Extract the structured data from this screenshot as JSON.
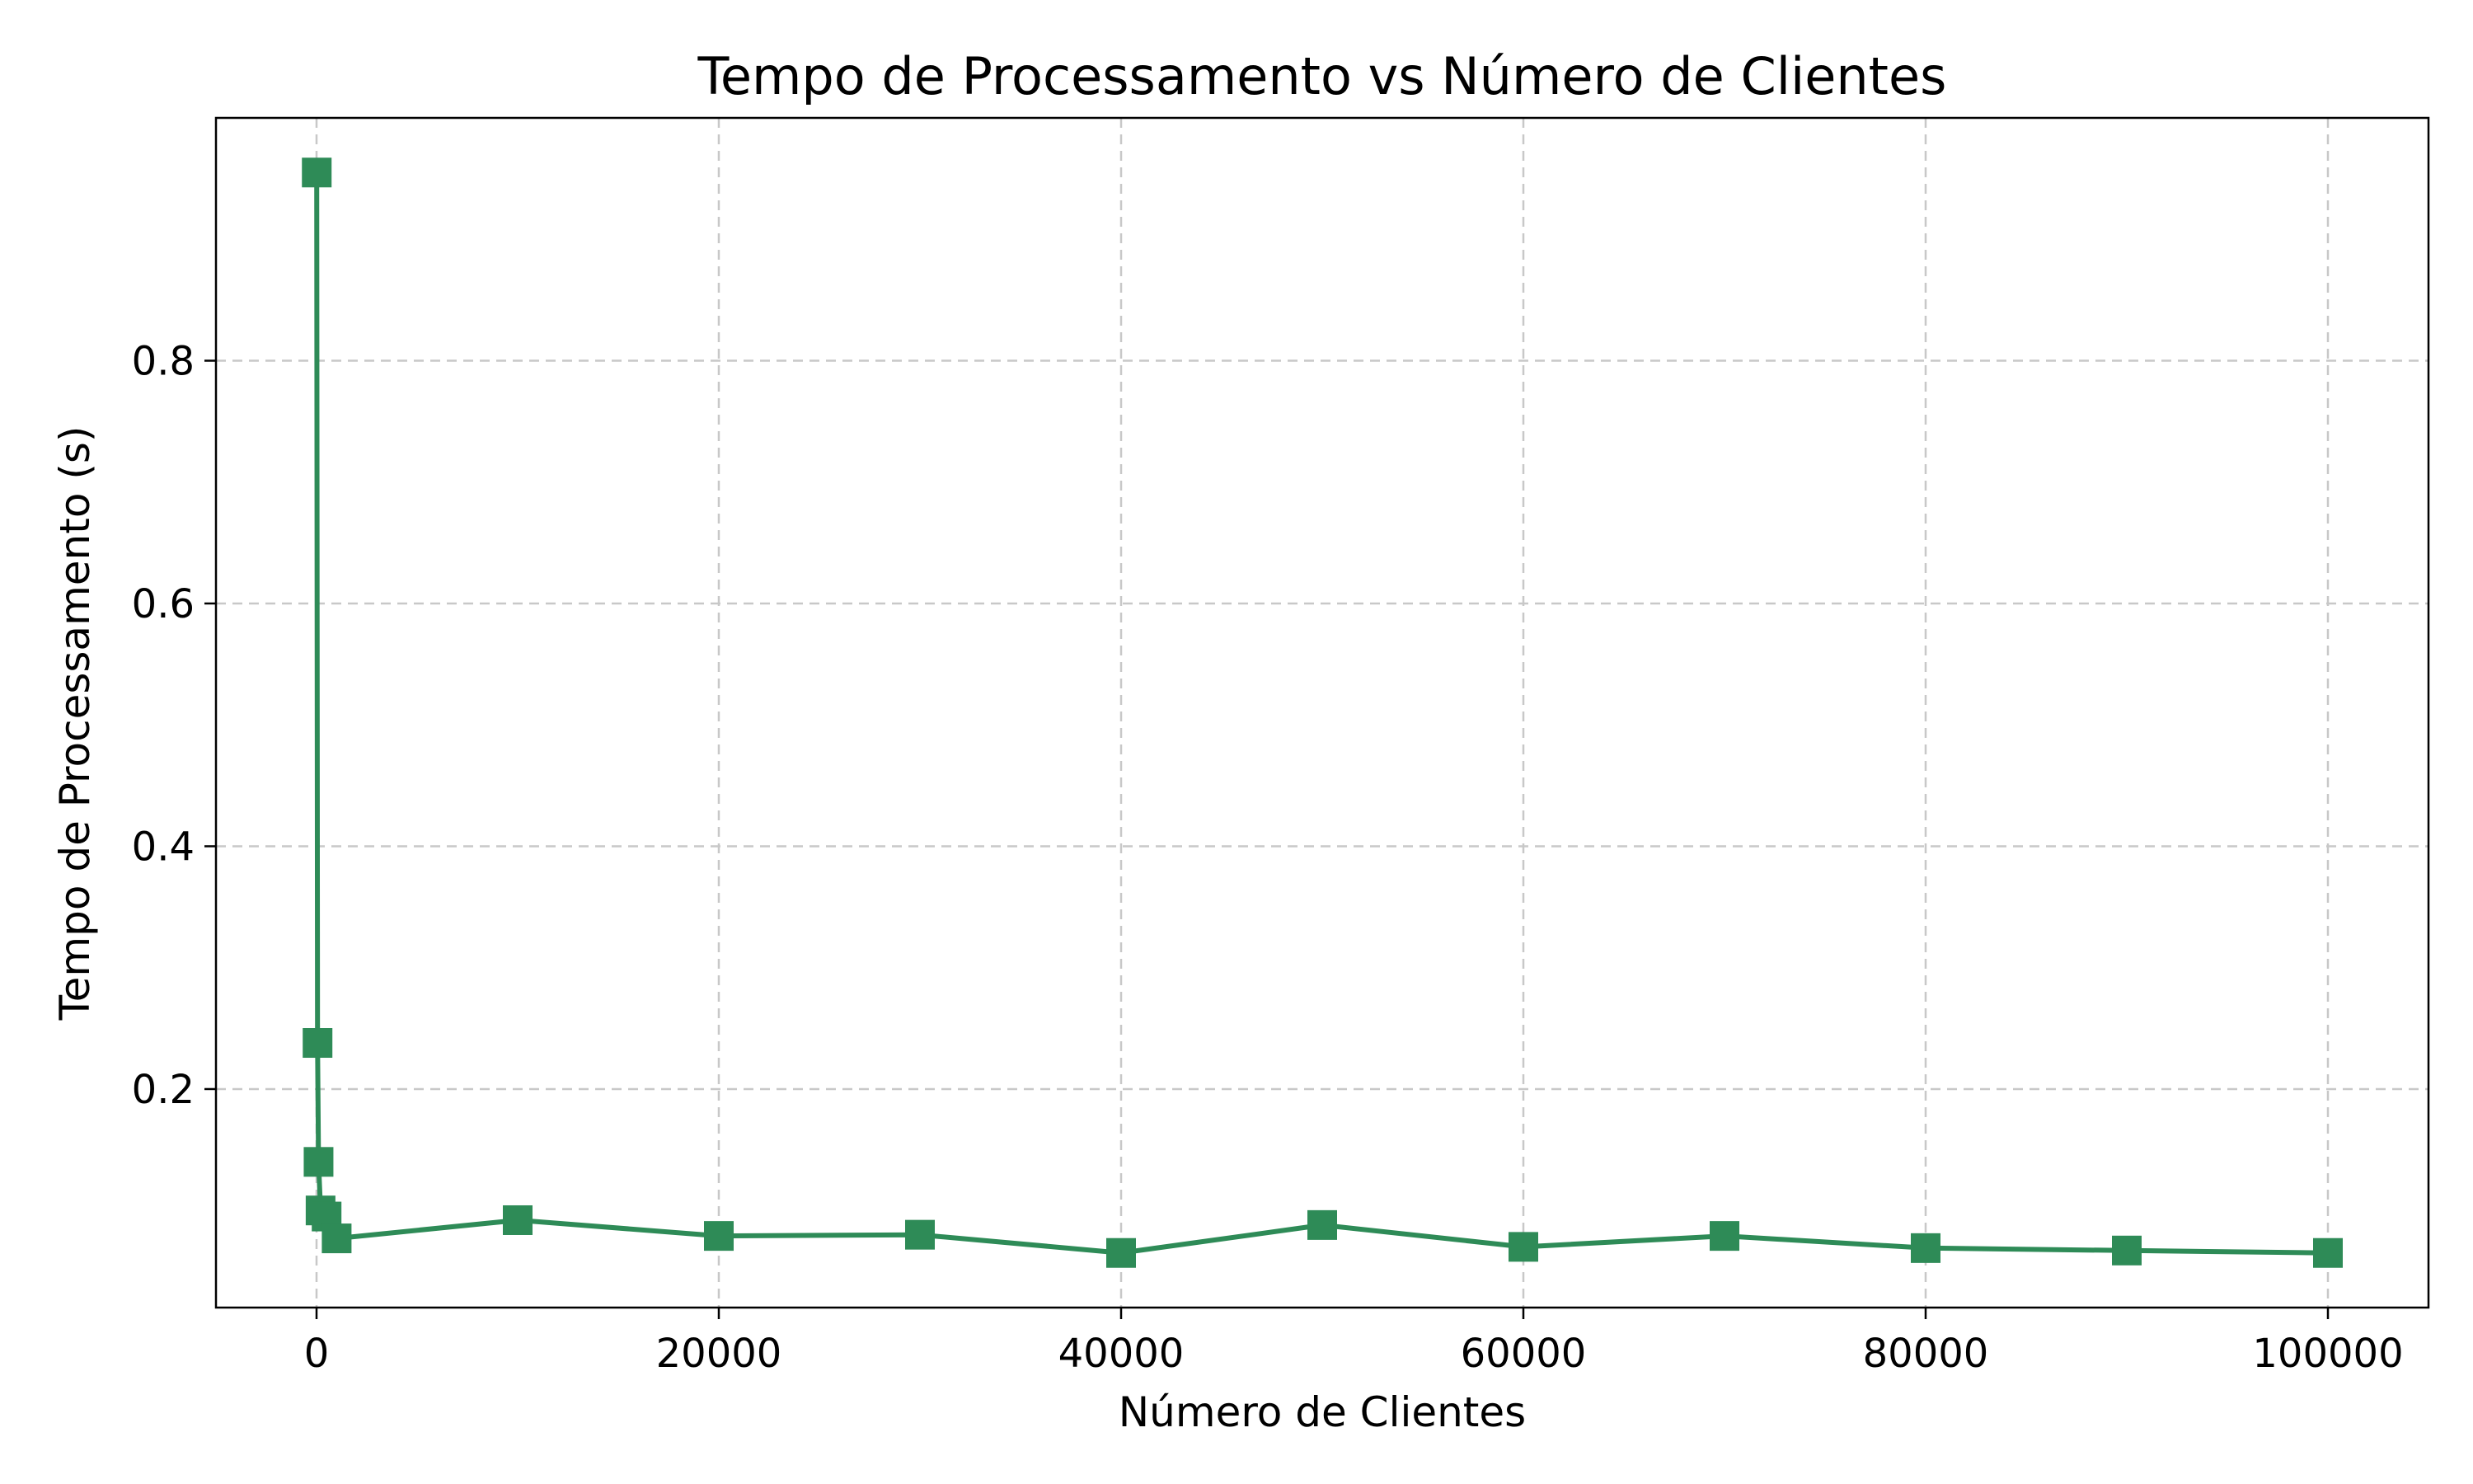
{
  "colors": {
    "series": "#2e8b57",
    "grid": "#c8c8c8",
    "axis": "#000000",
    "background": "#ffffff"
  },
  "chart_data": {
    "type": "line",
    "title": "Tempo de Processamento vs Número de Clientes",
    "xlabel": "Número de Clientes",
    "ylabel": "Tempo de Processamento (s)",
    "xlim": [
      -5000,
      105000
    ],
    "ylim": [
      0.02,
      1.0
    ],
    "xticks": [
      0,
      20000,
      40000,
      60000,
      80000,
      100000
    ],
    "xtick_labels": [
      "0",
      "20000",
      "40000",
      "60000",
      "80000",
      "100000"
    ],
    "yticks": [
      0.2,
      0.4,
      0.6,
      0.8
    ],
    "ytick_labels": [
      "0.2",
      "0.4",
      "0.6",
      "0.8"
    ],
    "grid": true,
    "marker": "square",
    "series": [
      {
        "x": [
          10,
          50,
          100,
          200,
          500,
          1000,
          10000,
          20000,
          30000,
          40000,
          50000,
          60000,
          70000,
          80000,
          90000,
          100000
        ],
        "y": [
          0.955,
          0.238,
          0.14,
          0.1,
          0.095,
          0.077,
          0.092,
          0.079,
          0.08,
          0.065,
          0.088,
          0.07,
          0.079,
          0.069,
          0.067,
          0.065
        ]
      }
    ]
  }
}
